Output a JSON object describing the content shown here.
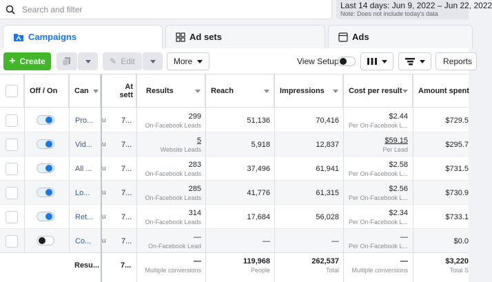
{
  "search": {
    "placeholder": "Search and filter"
  },
  "date": {
    "range": "Last 14 days: Jun 9, 2022 – Jun 22, 2022",
    "note": "Note: Does not include today's data"
  },
  "tabs": [
    {
      "label": "Campaigns"
    },
    {
      "label": "Ad sets"
    },
    {
      "label": "Ads"
    }
  ],
  "toolbar": {
    "create_label": "Create",
    "edit_label": "Edit",
    "more_label": "More",
    "view_setup_label": "View Setup",
    "reports_label": "Reports"
  },
  "columns": {
    "onoff": "Off / On",
    "campaign": "Can",
    "attribution_line1": "At",
    "attribution_line2": "sett",
    "results": "Results",
    "reach": "Reach",
    "impressions": "Impressions",
    "cpr": "Cost per result",
    "amount": "Amount spent"
  },
  "rows": [
    {
      "on": true,
      "name": "Pro...",
      "extra": "u",
      "attr": "7...",
      "results": "299",
      "results_sub": "On-Facebook Leads",
      "reach": "51,136",
      "impressions": "70,416",
      "cpr": "$2.44",
      "cpr_sub": "Per On-Facebook L...",
      "amount": "$729.5"
    },
    {
      "on": true,
      "name": "Vid...",
      "extra": "u",
      "attr": "7...",
      "results": "5",
      "results_sub": "Website Leads",
      "reach": "5,918",
      "impressions": "12,837",
      "cpr": "$59.15",
      "cpr_sub": "Per Lead",
      "amount": "$295.7"
    },
    {
      "on": true,
      "name": "All ...",
      "extra": "u",
      "attr": "7...",
      "results": "283",
      "results_sub": "On-Facebook Leads",
      "reach": "37,496",
      "impressions": "61,941",
      "cpr": "$2.58",
      "cpr_sub": "Per On-Facebook L...",
      "amount": "$731.5"
    },
    {
      "on": true,
      "name": "Lo...",
      "extra": "u",
      "attr": "7...",
      "results": "285",
      "results_sub": "On-Facebook Leads",
      "reach": "41,776",
      "impressions": "61,315",
      "cpr": "$2.56",
      "cpr_sub": "Per On-Facebook L...",
      "amount": "$730.9"
    },
    {
      "on": true,
      "name": "Ret...",
      "extra": "u",
      "attr": "7...",
      "results": "314",
      "results_sub": "On-Facebook Leads",
      "reach": "17,684",
      "impressions": "56,028",
      "cpr": "$2.34",
      "cpr_sub": "Per On-Facebook L...",
      "amount": "$733.1"
    },
    {
      "on": false,
      "name": "Co...",
      "extra": "u",
      "attr": "7...",
      "results": "—",
      "results_sub": "On-Facebook Lead",
      "reach": "—",
      "impressions": "—",
      "cpr": "—",
      "cpr_sub": "Per On-Facebook L...",
      "amount": "$0.0"
    }
  ],
  "totals": {
    "name": "Resu...",
    "attr": "7...",
    "results": "—",
    "results_sub": "Multiple conversions",
    "reach": "119,968",
    "reach_sub": "People",
    "impressions": "262,537",
    "impressions_sub": "Total",
    "cpr": "—",
    "cpr_sub": "Multiple conversions",
    "amount": "$3,220",
    "amount_sub": "Total S"
  },
  "colors": {
    "accent": "#1877f2",
    "create": "#42b72a",
    "link": "#385898"
  },
  "icons": [
    "search-icon",
    "calendar-icon",
    "campaigns-icon",
    "adsets-icon",
    "ads-icon",
    "plus-icon",
    "duplicate-icon",
    "pencil-icon",
    "columns-icon",
    "breakdown-icon",
    "chevron-down-icon"
  ]
}
